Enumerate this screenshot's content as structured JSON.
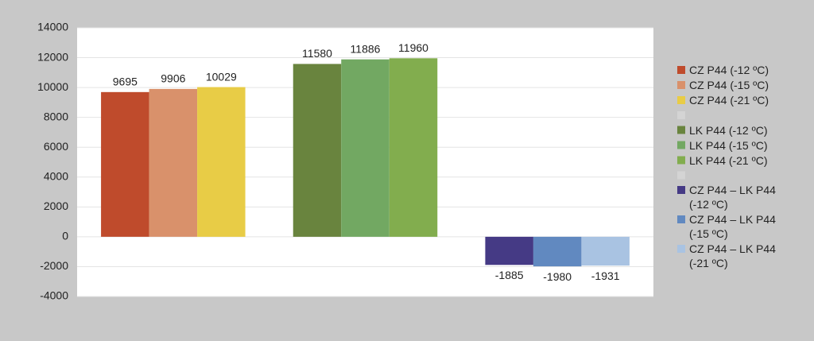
{
  "chart_data": {
    "type": "bar",
    "categories": [
      null,
      null,
      null
    ],
    "series": [
      {
        "name": "CZ P44 (-12 ºC)",
        "color": "#bf4b2c",
        "values": [
          9695,
          null,
          null
        ]
      },
      {
        "name": "CZ P44 (-15 ºC)",
        "color": "#d9916b",
        "values": [
          9906,
          null,
          null
        ]
      },
      {
        "name": "CZ P44 (-21 ºC)",
        "color": "#e8cc46",
        "values": [
          10029,
          null,
          null
        ]
      },
      {
        "name": "LK P44 (-12 ºC)",
        "color": "#69843e",
        "values": [
          null,
          11580,
          null
        ]
      },
      {
        "name": "LK P44 (-15 ºC)",
        "color": "#72a862",
        "values": [
          null,
          11886,
          null
        ]
      },
      {
        "name": "LK P44 (-21 ºC)",
        "color": "#82ad4e",
        "values": [
          null,
          11960,
          null
        ]
      },
      {
        "name": "CZ P44 – LK P44 (-12 ºC)",
        "color": "#453a85",
        "values": [
          null,
          null,
          -1885
        ]
      },
      {
        "name": "CZ P44 – LK P44 (-15 ºC)",
        "color": "#6189c0",
        "values": [
          null,
          null,
          -1980
        ]
      },
      {
        "name": "CZ P44 – LK P44 (-21 ºC)",
        "color": "#a9c3e2",
        "values": [
          null,
          null,
          -1931
        ]
      }
    ],
    "ylim": [
      -4000,
      14000
    ],
    "yticks": [
      -4000,
      -2000,
      0,
      2000,
      4000,
      6000,
      8000,
      10000,
      12000,
      14000
    ],
    "grid": true,
    "legend": "right"
  }
}
